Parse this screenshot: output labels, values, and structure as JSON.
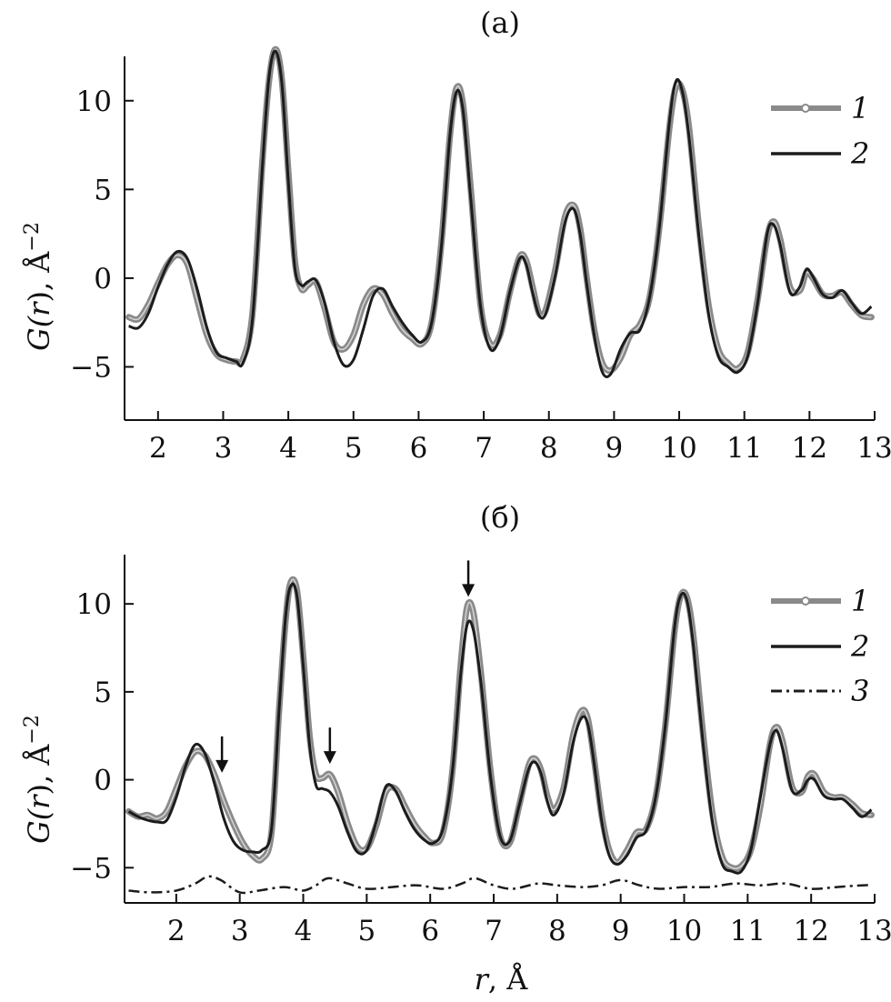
{
  "colors": {
    "measured": "#8a8a8a",
    "model": "#1c1c1c",
    "difference": "#1c1c1c",
    "axis": "#111111"
  },
  "chart_data": [
    {
      "type": "line",
      "panel_label": "(a)",
      "xlabel": "",
      "ylabel": "G(r), Å−2",
      "ylabel_parts": {
        "g": "G(",
        "r": "r",
        "close": "), Å",
        "exp": "−2"
      },
      "xlim": [
        1.5,
        13
      ],
      "ylim": [
        -8,
        12.5
      ],
      "xticks": [
        2,
        3,
        4,
        5,
        6,
        7,
        8,
        9,
        10,
        11,
        12,
        13
      ],
      "xtick_labels": [
        "2",
        "3",
        "4",
        "5",
        "6",
        "7",
        "8",
        "9",
        "10",
        "11",
        "12",
        "13"
      ],
      "yticks": [
        -5,
        0,
        5,
        10
      ],
      "ytick_labels": [
        "−5",
        "0",
        "5",
        "10"
      ],
      "grid": false,
      "legend_position": "top-right",
      "series": [
        {
          "name": "1",
          "style": "gray-circles",
          "x": [
            1.55,
            1.7,
            1.85,
            2.0,
            2.15,
            2.3,
            2.45,
            2.6,
            2.75,
            2.9,
            3.05,
            3.2,
            3.3,
            3.45,
            3.6,
            3.7,
            3.8,
            3.9,
            4.0,
            4.1,
            4.2,
            4.3,
            4.42,
            4.55,
            4.7,
            4.85,
            5.0,
            5.15,
            5.3,
            5.45,
            5.6,
            5.75,
            5.9,
            6.05,
            6.2,
            6.35,
            6.48,
            6.58,
            6.68,
            6.8,
            6.95,
            7.1,
            7.25,
            7.4,
            7.55,
            7.65,
            7.75,
            7.85,
            7.95,
            8.1,
            8.25,
            8.38,
            8.48,
            8.58,
            8.7,
            8.82,
            8.95,
            9.1,
            9.25,
            9.4,
            9.55,
            9.7,
            9.85,
            9.95,
            10.05,
            10.15,
            10.3,
            10.45,
            10.6,
            10.75,
            10.9,
            11.05,
            11.2,
            11.35,
            11.45,
            11.55,
            11.7,
            11.85,
            11.95,
            12.05,
            12.2,
            12.35,
            12.5,
            12.65,
            12.8,
            12.95
          ],
          "values": [
            -2.2,
            -2.3,
            -1.5,
            -0.3,
            0.8,
            1.3,
            0.8,
            -1.2,
            -3.2,
            -4.3,
            -4.6,
            -4.7,
            -4.6,
            -2.0,
            6.5,
            11.0,
            12.9,
            11.2,
            6.0,
            1.0,
            -0.6,
            -0.4,
            -0.2,
            -1.6,
            -3.6,
            -4.0,
            -3.2,
            -1.5,
            -0.6,
            -0.9,
            -2.0,
            -2.9,
            -3.4,
            -3.7,
            -2.5,
            2.0,
            8.0,
            10.7,
            9.8,
            5.0,
            -1.5,
            -3.7,
            -3.2,
            -0.8,
            1.2,
            1.0,
            -0.5,
            -2.0,
            -1.8,
            0.5,
            3.5,
            4.1,
            2.8,
            0.0,
            -3.0,
            -4.8,
            -5.2,
            -4.5,
            -3.2,
            -2.6,
            -1.0,
            3.0,
            8.5,
            10.8,
            10.6,
            8.5,
            3.0,
            -1.5,
            -4.0,
            -4.8,
            -5.1,
            -4.2,
            -1.3,
            2.3,
            3.2,
            2.2,
            -0.5,
            -0.7,
            0.3,
            0.0,
            -0.9,
            -1.0,
            -0.8,
            -1.5,
            -2.1,
            -2.2
          ]
        },
        {
          "name": "2",
          "style": "black-line",
          "x": [
            1.55,
            1.7,
            1.85,
            2.0,
            2.15,
            2.3,
            2.45,
            2.6,
            2.75,
            2.9,
            3.05,
            3.2,
            3.3,
            3.45,
            3.6,
            3.7,
            3.8,
            3.9,
            4.0,
            4.1,
            4.2,
            4.3,
            4.42,
            4.55,
            4.7,
            4.85,
            5.0,
            5.15,
            5.3,
            5.45,
            5.6,
            5.75,
            5.9,
            6.05,
            6.2,
            6.35,
            6.48,
            6.58,
            6.68,
            6.8,
            6.95,
            7.1,
            7.25,
            7.4,
            7.55,
            7.65,
            7.75,
            7.85,
            7.95,
            8.1,
            8.25,
            8.38,
            8.48,
            8.58,
            8.7,
            8.82,
            8.95,
            9.1,
            9.25,
            9.4,
            9.55,
            9.7,
            9.85,
            9.95,
            10.05,
            10.15,
            10.3,
            10.45,
            10.6,
            10.75,
            10.9,
            11.05,
            11.2,
            11.35,
            11.45,
            11.55,
            11.7,
            11.85,
            11.95,
            12.05,
            12.2,
            12.35,
            12.5,
            12.65,
            12.8,
            12.95
          ],
          "values": [
            -2.7,
            -2.8,
            -2.0,
            -0.5,
            0.8,
            1.5,
            1.1,
            -0.6,
            -2.8,
            -4.2,
            -4.5,
            -4.7,
            -4.8,
            -2.3,
            6.2,
            11.2,
            12.8,
            11.0,
            5.5,
            0.6,
            -0.4,
            -0.2,
            -0.1,
            -1.3,
            -3.6,
            -4.9,
            -4.6,
            -2.9,
            -1.0,
            -0.6,
            -1.6,
            -2.5,
            -3.2,
            -3.6,
            -2.5,
            1.8,
            8.0,
            10.5,
            9.5,
            4.5,
            -1.6,
            -4.0,
            -3.3,
            -0.8,
            1.1,
            0.8,
            -0.8,
            -2.1,
            -2.0,
            0.2,
            3.2,
            3.9,
            2.5,
            -0.3,
            -3.3,
            -5.3,
            -5.4,
            -4.0,
            -3.1,
            -2.9,
            -1.0,
            3.0,
            8.8,
            11.1,
            10.5,
            8.0,
            2.5,
            -2.0,
            -4.4,
            -5.0,
            -5.3,
            -4.4,
            -1.5,
            2.5,
            3.0,
            1.9,
            -0.8,
            -0.5,
            0.5,
            0.1,
            -0.9,
            -1.1,
            -0.7,
            -1.4,
            -2.0,
            -1.6
          ]
        }
      ]
    },
    {
      "type": "line",
      "panel_label": "(б)",
      "xlabel": "r, Å",
      "xlabel_parts": {
        "r": "r",
        "rest": ", Å"
      },
      "ylabel": "G(r), Å−2",
      "ylabel_parts": {
        "g": "G(",
        "r": "r",
        "close": "), Å",
        "exp": "−2"
      },
      "xlim": [
        1.2,
        13
      ],
      "ylim": [
        -7,
        12.8
      ],
      "xticks": [
        2,
        3,
        4,
        5,
        6,
        7,
        8,
        9,
        10,
        11,
        12,
        13
      ],
      "xtick_labels": [
        "2",
        "3",
        "4",
        "5",
        "6",
        "7",
        "8",
        "9",
        "10",
        "11",
        "12",
        "13"
      ],
      "yticks": [
        -5,
        0,
        5,
        10
      ],
      "ytick_labels": [
        "−5",
        "0",
        "5",
        "10"
      ],
      "grid": false,
      "legend_position": "top-right",
      "annotations": [
        {
          "type": "arrow-down",
          "x": 2.72,
          "y": 0.4
        },
        {
          "type": "arrow-down",
          "x": 4.42,
          "y": 0.9
        },
        {
          "type": "arrow-down",
          "x": 6.6,
          "y": 10.4
        }
      ],
      "series": [
        {
          "name": "1",
          "style": "gray-circles",
          "x": [
            1.25,
            1.4,
            1.55,
            1.7,
            1.85,
            2.0,
            2.15,
            2.3,
            2.45,
            2.6,
            2.75,
            2.9,
            3.05,
            3.2,
            3.35,
            3.5,
            3.62,
            3.72,
            3.8,
            3.9,
            4.0,
            4.1,
            4.2,
            4.3,
            4.42,
            4.55,
            4.7,
            4.85,
            5.0,
            5.15,
            5.3,
            5.45,
            5.6,
            5.75,
            5.9,
            6.05,
            6.2,
            6.35,
            6.48,
            6.58,
            6.68,
            6.8,
            6.95,
            7.1,
            7.25,
            7.4,
            7.55,
            7.65,
            7.75,
            7.85,
            7.95,
            8.1,
            8.25,
            8.38,
            8.48,
            8.58,
            8.7,
            8.82,
            8.95,
            9.1,
            9.25,
            9.4,
            9.55,
            9.7,
            9.85,
            9.95,
            10.05,
            10.15,
            10.3,
            10.45,
            10.6,
            10.75,
            10.9,
            11.05,
            11.2,
            11.35,
            11.45,
            11.55,
            11.7,
            11.85,
            11.95,
            12.05,
            12.2,
            12.35,
            12.5,
            12.65,
            12.8,
            12.95
          ],
          "values": [
            -1.8,
            -2.1,
            -2.0,
            -2.2,
            -1.8,
            -0.5,
            0.8,
            1.6,
            1.4,
            0.3,
            -1.2,
            -2.5,
            -3.6,
            -4.3,
            -4.5,
            -3.0,
            4.0,
            9.0,
            11.2,
            10.8,
            7.0,
            2.5,
            0.3,
            0.1,
            0.3,
            -0.7,
            -2.5,
            -3.8,
            -3.9,
            -2.6,
            -0.7,
            -0.5,
            -1.5,
            -2.5,
            -3.2,
            -3.6,
            -3.0,
            0.5,
            6.5,
            9.8,
            9.5,
            6.0,
            0.5,
            -3.2,
            -3.6,
            -1.5,
            0.8,
            1.2,
            0.5,
            -1.0,
            -1.7,
            -0.5,
            2.5,
            3.9,
            3.5,
            1.2,
            -2.0,
            -4.0,
            -4.7,
            -4.0,
            -3.0,
            -2.8,
            -1.0,
            3.0,
            8.5,
            10.5,
            10.3,
            8.0,
            2.5,
            -2.0,
            -4.4,
            -5.0,
            -4.9,
            -4.0,
            -1.5,
            2.0,
            3.0,
            2.2,
            -0.4,
            -0.7,
            0.2,
            0.3,
            -0.7,
            -1.0,
            -1.0,
            -1.4,
            -1.9,
            -2.0
          ]
        },
        {
          "name": "2",
          "style": "black-line",
          "x": [
            1.25,
            1.4,
            1.55,
            1.7,
            1.85,
            2.0,
            2.15,
            2.3,
            2.45,
            2.6,
            2.75,
            2.9,
            3.05,
            3.2,
            3.35,
            3.5,
            3.62,
            3.72,
            3.8,
            3.9,
            4.0,
            4.1,
            4.2,
            4.3,
            4.42,
            4.55,
            4.7,
            4.85,
            5.0,
            5.15,
            5.3,
            5.45,
            5.6,
            5.75,
            5.9,
            6.05,
            6.2,
            6.35,
            6.48,
            6.58,
            6.68,
            6.8,
            6.95,
            7.1,
            7.25,
            7.4,
            7.55,
            7.65,
            7.75,
            7.85,
            7.95,
            8.1,
            8.25,
            8.38,
            8.48,
            8.58,
            8.7,
            8.82,
            8.95,
            9.1,
            9.25,
            9.4,
            9.55,
            9.7,
            9.85,
            9.95,
            10.05,
            10.15,
            10.3,
            10.45,
            10.6,
            10.75,
            10.9,
            11.05,
            11.2,
            11.35,
            11.45,
            11.55,
            11.7,
            11.85,
            11.95,
            12.05,
            12.2,
            12.35,
            12.5,
            12.65,
            12.8,
            12.95
          ],
          "values": [
            -1.8,
            -2.1,
            -2.3,
            -2.4,
            -2.3,
            -1.0,
            0.8,
            2.0,
            1.5,
            -0.2,
            -2.2,
            -3.5,
            -4.0,
            -4.1,
            -4.0,
            -2.8,
            4.0,
            9.2,
            11.0,
            10.5,
            6.5,
            2.0,
            -0.3,
            -0.5,
            -0.7,
            -1.5,
            -3.0,
            -4.1,
            -4.0,
            -2.4,
            -0.4,
            -0.6,
            -1.8,
            -2.8,
            -3.4,
            -3.6,
            -2.8,
            0.5,
            6.0,
            8.8,
            8.5,
            5.5,
            0.2,
            -3.2,
            -3.5,
            -1.5,
            0.6,
            1.0,
            0.3,
            -1.3,
            -2.0,
            -0.8,
            2.1,
            3.5,
            3.2,
            1.0,
            -2.3,
            -4.3,
            -4.8,
            -4.3,
            -3.3,
            -2.9,
            -1.0,
            3.0,
            8.7,
            10.5,
            10.1,
            7.5,
            2.0,
            -2.5,
            -4.8,
            -5.2,
            -5.2,
            -4.0,
            -1.0,
            2.0,
            2.8,
            1.8,
            -0.6,
            -0.6,
            0.0,
            0.0,
            -0.9,
            -1.1,
            -1.1,
            -1.6,
            -2.1,
            -1.7
          ]
        },
        {
          "name": "3",
          "style": "dash-dot",
          "x": [
            1.25,
            1.6,
            2.0,
            2.3,
            2.5,
            2.7,
            3.0,
            3.3,
            3.7,
            4.0,
            4.2,
            4.4,
            4.7,
            5.0,
            5.4,
            5.8,
            6.2,
            6.5,
            6.7,
            7.0,
            7.3,
            7.7,
            8.0,
            8.4,
            8.7,
            9.0,
            9.3,
            9.6,
            10.0,
            10.4,
            10.8,
            11.2,
            11.6,
            12.0,
            12.4,
            12.8,
            12.95
          ],
          "values": [
            -6.3,
            -6.4,
            -6.3,
            -5.9,
            -5.5,
            -5.7,
            -6.4,
            -6.3,
            -6.1,
            -6.3,
            -6.0,
            -5.6,
            -5.9,
            -6.2,
            -6.1,
            -6.0,
            -6.2,
            -5.9,
            -5.6,
            -6.0,
            -6.2,
            -5.9,
            -6.0,
            -6.1,
            -6.0,
            -5.7,
            -6.0,
            -6.2,
            -6.1,
            -6.1,
            -5.9,
            -6.0,
            -5.9,
            -6.2,
            -6.1,
            -6.0,
            -6.0
          ]
        }
      ]
    }
  ]
}
